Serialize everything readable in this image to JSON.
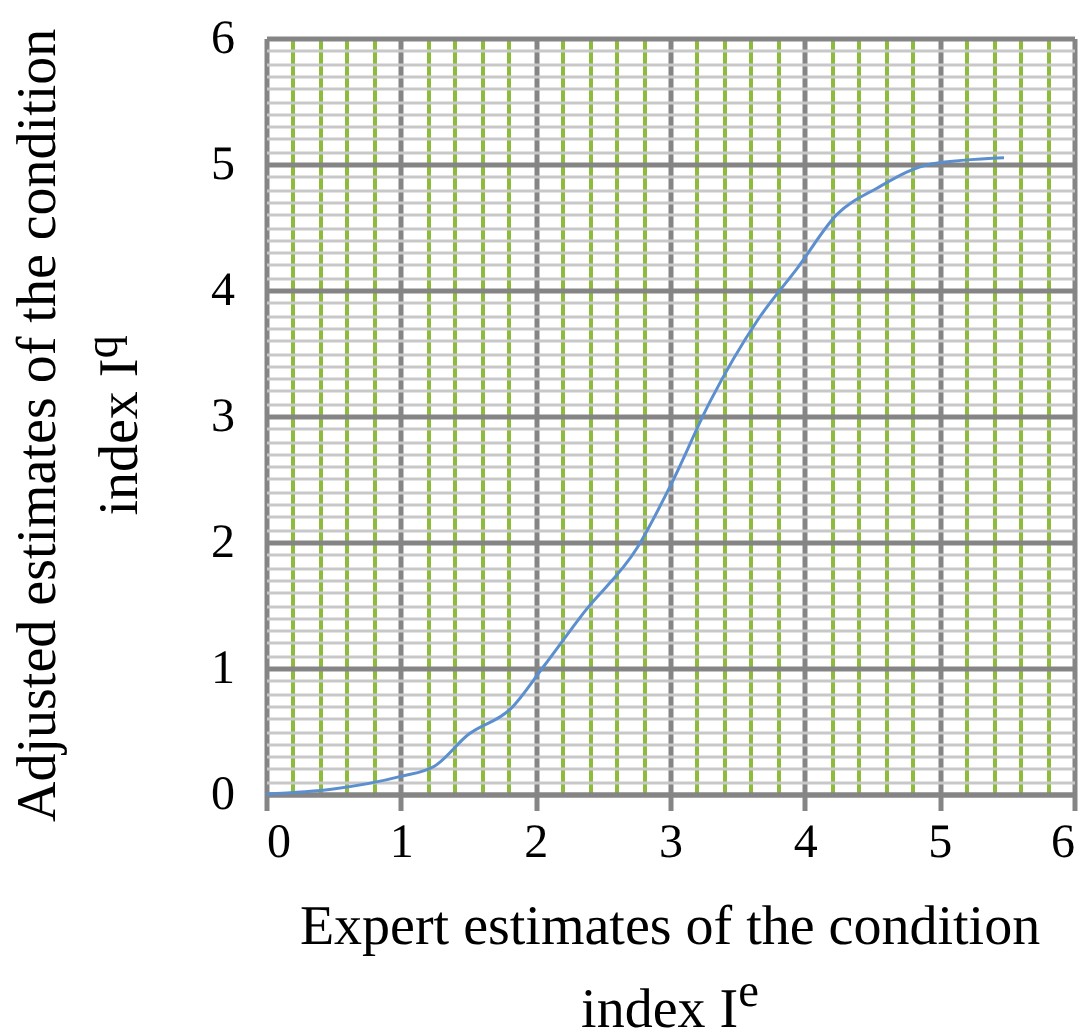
{
  "chart_data": {
    "type": "line",
    "xlabel": "Expert estimates of the condition index I$^{e}$",
    "ylabel": "Adjusted estimates of the condition index I$^{q}$",
    "x": [
      0,
      0.5,
      1.0,
      1.25,
      1.5,
      1.82,
      2.06,
      2.36,
      2.76,
      3.0,
      3.3,
      3.65,
      3.95,
      4.24,
      4.54,
      4.94,
      5.48
    ],
    "series": [
      {
        "color": "#5b8fd0",
        "values": [
          0,
          0.04,
          0.14,
          0.22,
          0.47,
          0.68,
          1.01,
          1.44,
          1.96,
          2.44,
          3.12,
          3.76,
          4.18,
          4.6,
          4.81,
          5.0,
          5.05
        ]
      }
    ],
    "xlim": [
      0,
      6
    ],
    "ylim": [
      0,
      6
    ],
    "xticks": [
      0,
      {
        "value": 0.2,
        "label": null
      },
      {
        "value": 0.4,
        "label": null
      },
      {
        "value": 0.6,
        "label": null
      },
      {
        "value": 0.8,
        "label": null
      },
      1,
      {
        "value": 1.2,
        "label": null
      },
      {
        "value": 1.4,
        "label": null
      },
      {
        "value": 1.6,
        "label": null
      },
      {
        "value": 1.8,
        "label": null
      },
      2,
      {
        "value": 2.2,
        "label": null
      },
      {
        "value": 2.4,
        "label": null
      },
      {
        "value": 2.6,
        "label": null
      },
      {
        "value": 2.8,
        "label": null
      },
      3,
      {
        "value": 3.2,
        "label": null
      },
      {
        "value": 3.4,
        "label": null
      },
      {
        "value": 3.6,
        "label": null
      },
      {
        "value": 3.8,
        "label": null
      },
      4,
      {
        "value": 4.2,
        "label": null
      },
      {
        "value": 4.4,
        "label": null
      },
      {
        "value": 4.6,
        "label": null
      },
      {
        "value": 4.8,
        "label": null
      },
      5,
      {
        "value": 5.2,
        "label": null
      },
      {
        "value": 5.4,
        "label": null
      },
      {
        "value": 5.6,
        "label": null
      },
      {
        "value": 5.8,
        "label": null
      },
      6
    ],
    "yticks": [
      0,
      {
        "value": 0.1,
        "label": null
      },
      {
        "value": 0.2,
        "label": null
      },
      {
        "value": 0.3,
        "label": null
      },
      {
        "value": 0.4,
        "label": null
      },
      {
        "value": 0.5,
        "label": null
      },
      {
        "value": 0.6,
        "label": null
      },
      {
        "value": 0.7,
        "label": null
      },
      {
        "value": 0.8,
        "label": null
      },
      {
        "value": 0.9,
        "label": null
      },
      1,
      {
        "value": 1.1,
        "label": null
      },
      {
        "value": 1.2,
        "label": null
      },
      {
        "value": 1.3,
        "label": null
      },
      {
        "value": 1.4,
        "label": null
      },
      {
        "value": 1.5,
        "label": null
      },
      {
        "value": 1.6,
        "label": null
      },
      {
        "value": 1.7,
        "label": null
      },
      {
        "value": 1.8,
        "label": null
      },
      {
        "value": 1.9,
        "label": null
      },
      2,
      {
        "value": 2.1,
        "label": null
      },
      {
        "value": 2.2,
        "label": null
      },
      {
        "value": 2.3,
        "label": null
      },
      {
        "value": 2.4,
        "label": null
      },
      {
        "value": 2.5,
        "label": null
      },
      {
        "value": 2.6,
        "label": null
      },
      {
        "value": 2.7,
        "label": null
      },
      {
        "value": 2.8,
        "label": null
      },
      {
        "value": 2.9,
        "label": null
      },
      3,
      {
        "value": 3.1,
        "label": null
      },
      {
        "value": 3.2,
        "label": null
      },
      {
        "value": 3.3,
        "label": null
      },
      {
        "value": 3.4,
        "label": null
      },
      {
        "value": 3.5,
        "label": null
      },
      {
        "value": 3.6,
        "label": null
      },
      {
        "value": 3.7,
        "label": null
      },
      {
        "value": 3.8,
        "label": null
      },
      {
        "value": 3.9,
        "label": null
      },
      4,
      {
        "value": 4.1,
        "label": null
      },
      {
        "value": 4.2,
        "label": null
      },
      {
        "value": 4.3,
        "label": null
      },
      {
        "value": 4.4,
        "label": null
      },
      {
        "value": 4.5,
        "label": null
      },
      {
        "value": 4.6,
        "label": null
      },
      {
        "value": 4.7,
        "label": null
      },
      {
        "value": 4.8,
        "label": null
      },
      {
        "value": 4.9,
        "label": null
      },
      5,
      {
        "value": 5.1,
        "label": null
      },
      {
        "value": 5.2,
        "label": null
      },
      {
        "value": 5.3,
        "label": null
      },
      {
        "value": 5.4,
        "label": null
      },
      {
        "value": 5.5,
        "label": null
      },
      {
        "value": 5.6,
        "label": null
      },
      {
        "value": 5.7,
        "label": null
      },
      {
        "value": 5.8,
        "label": null
      },
      {
        "value": 5.9,
        "label": null
      },
      6
    ],
    "grid": true,
    "marker": "none",
    "line_style": "solid"
  }
}
